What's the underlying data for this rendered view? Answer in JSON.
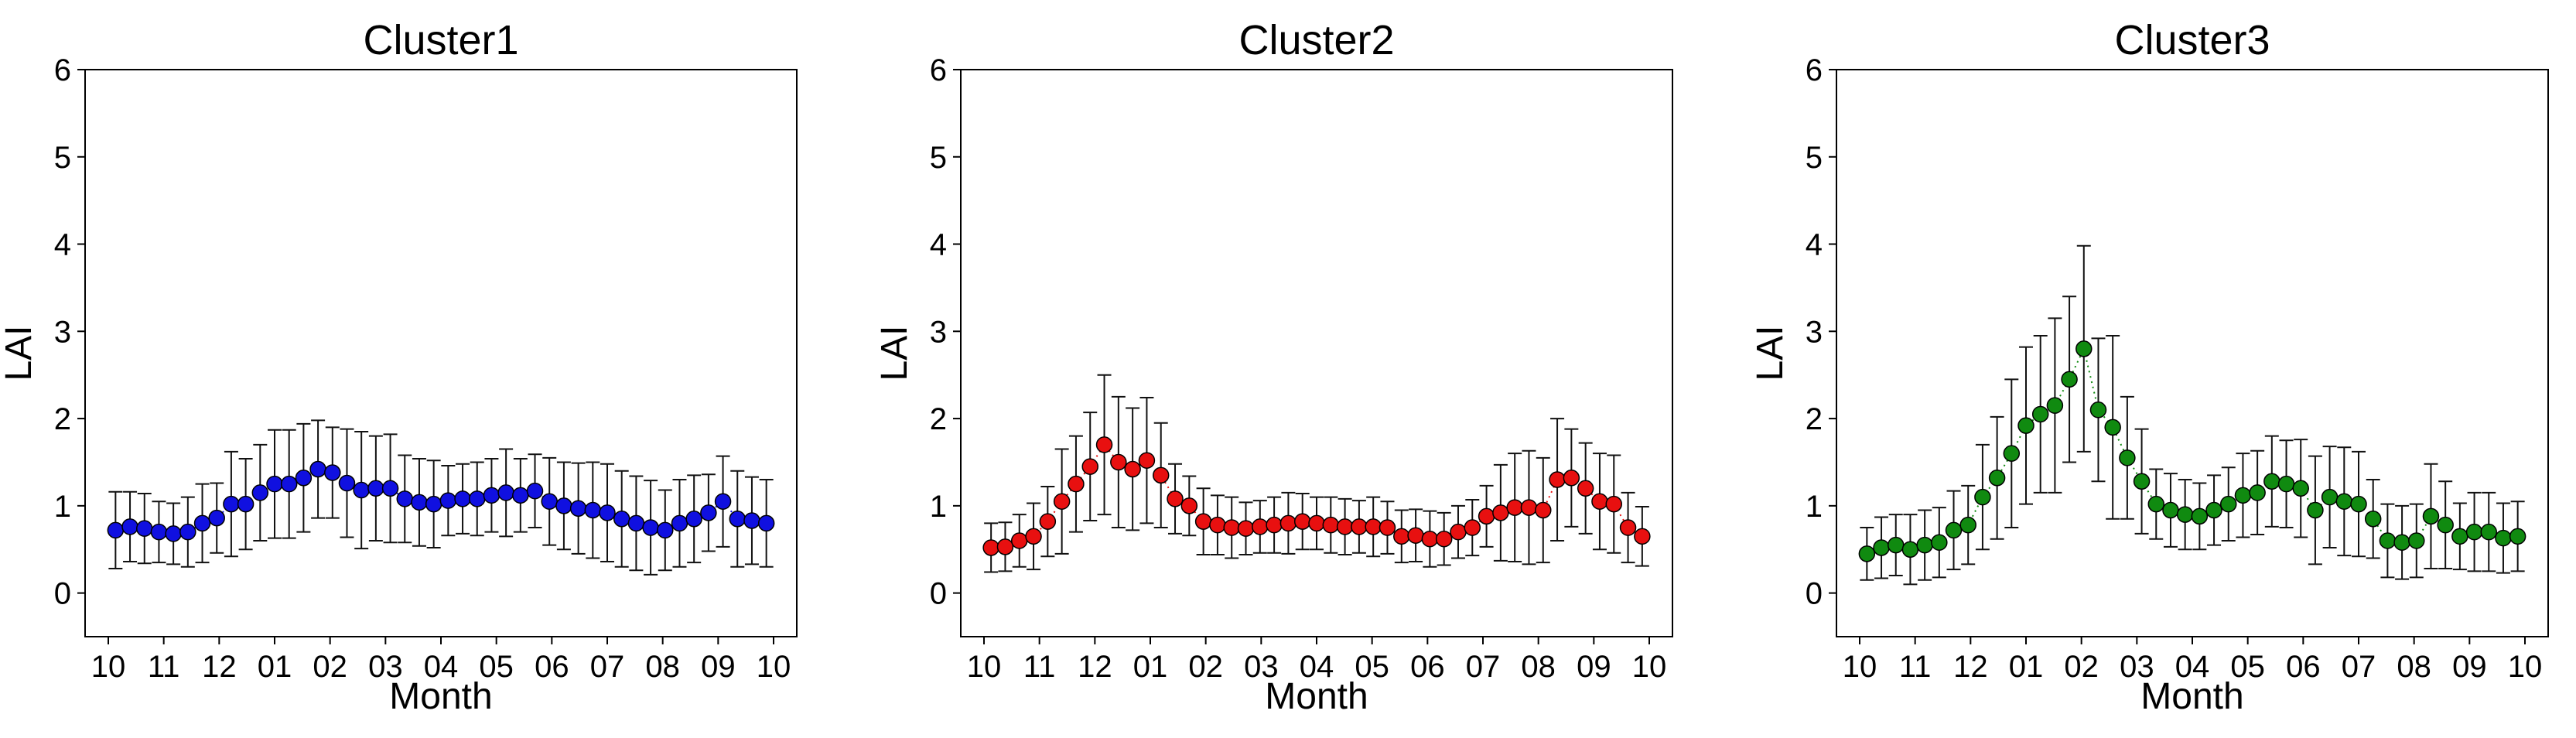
{
  "chart_data": [
    {
      "type": "scatter",
      "title": "Cluster1",
      "xlabel": "Month",
      "ylabel": "LAI",
      "ylim": [
        -0.5,
        6
      ],
      "yticks": [
        "0",
        "1",
        "2",
        "3",
        "4",
        "5",
        "6"
      ],
      "xticks": [
        "10",
        "11",
        "12",
        "01",
        "02",
        "03",
        "04",
        "05",
        "06",
        "07",
        "08",
        "09",
        "10"
      ],
      "grid": false,
      "color": "#1010e0",
      "connector": "dotted",
      "values": [
        0.72,
        0.76,
        0.74,
        0.7,
        0.68,
        0.7,
        0.8,
        0.86,
        1.02,
        1.02,
        1.15,
        1.25,
        1.25,
        1.32,
        1.42,
        1.38,
        1.26,
        1.18,
        1.2,
        1.2,
        1.08,
        1.04,
        1.02,
        1.06,
        1.08,
        1.08,
        1.12,
        1.15,
        1.12,
        1.17,
        1.05,
        1.0,
        0.97,
        0.95,
        0.92,
        0.85,
        0.8,
        0.75,
        0.72,
        0.8,
        0.85,
        0.92,
        1.05,
        0.85,
        0.83,
        0.8
      ],
      "errors": [
        0.44,
        0.4,
        0.4,
        0.35,
        0.35,
        0.4,
        0.45,
        0.4,
        0.6,
        0.52,
        0.55,
        0.62,
        0.62,
        0.62,
        0.56,
        0.52,
        0.62,
        0.67,
        0.6,
        0.62,
        0.5,
        0.5,
        0.5,
        0.4,
        0.4,
        0.42,
        0.42,
        0.5,
        0.42,
        0.42,
        0.5,
        0.5,
        0.52,
        0.55,
        0.56,
        0.55,
        0.54,
        0.54,
        0.46,
        0.5,
        0.5,
        0.44,
        0.52,
        0.55,
        0.5,
        0.5
      ]
    },
    {
      "type": "scatter",
      "title": "Cluster2",
      "xlabel": "Month",
      "ylabel": "LAI",
      "ylim": [
        -0.5,
        6
      ],
      "yticks": [
        "0",
        "1",
        "2",
        "3",
        "4",
        "5",
        "6"
      ],
      "xticks": [
        "10",
        "11",
        "12",
        "01",
        "02",
        "03",
        "04",
        "05",
        "06",
        "07",
        "08",
        "09",
        "10"
      ],
      "grid": false,
      "color": "#e81010",
      "connector": "dotted",
      "values": [
        0.52,
        0.53,
        0.6,
        0.65,
        0.82,
        1.05,
        1.25,
        1.45,
        1.7,
        1.5,
        1.42,
        1.52,
        1.35,
        1.08,
        1.0,
        0.82,
        0.78,
        0.75,
        0.74,
        0.76,
        0.78,
        0.8,
        0.82,
        0.8,
        0.78,
        0.76,
        0.76,
        0.76,
        0.75,
        0.65,
        0.66,
        0.62,
        0.62,
        0.7,
        0.75,
        0.88,
        0.92,
        0.98,
        0.98,
        0.95,
        1.3,
        1.32,
        1.2,
        1.05,
        1.02,
        0.75,
        0.65
      ],
      "errors": [
        0.28,
        0.28,
        0.3,
        0.38,
        0.4,
        0.6,
        0.55,
        0.62,
        0.8,
        0.75,
        0.7,
        0.72,
        0.6,
        0.4,
        0.34,
        0.38,
        0.34,
        0.35,
        0.3,
        0.3,
        0.32,
        0.35,
        0.32,
        0.3,
        0.32,
        0.32,
        0.3,
        0.34,
        0.3,
        0.3,
        0.3,
        0.32,
        0.3,
        0.3,
        0.32,
        0.35,
        0.55,
        0.62,
        0.65,
        0.6,
        0.7,
        0.56,
        0.52,
        0.55,
        0.56,
        0.4,
        0.34
      ]
    },
    {
      "type": "scatter",
      "title": "Cluster3",
      "xlabel": "Month",
      "ylabel": "LAI",
      "ylim": [
        -0.5,
        6
      ],
      "yticks": [
        "0",
        "1",
        "2",
        "3",
        "4",
        "5",
        "6"
      ],
      "xticks": [
        "10",
        "11",
        "12",
        "01",
        "02",
        "03",
        "04",
        "05",
        "06",
        "07",
        "08",
        "09",
        "10"
      ],
      "grid": false,
      "color": "#108a10",
      "connector": "dotted",
      "values": [
        0.45,
        0.52,
        0.55,
        0.5,
        0.55,
        0.58,
        0.72,
        0.78,
        1.1,
        1.32,
        1.6,
        1.92,
        2.05,
        2.15,
        2.45,
        2.8,
        2.1,
        1.9,
        1.55,
        1.28,
        1.02,
        0.95,
        0.9,
        0.88,
        0.95,
        1.02,
        1.12,
        1.15,
        1.28,
        1.25,
        1.2,
        0.95,
        1.1,
        1.05,
        1.02,
        0.85,
        0.6,
        0.58,
        0.6,
        0.88,
        0.78,
        0.65,
        0.7,
        0.7,
        0.63,
        0.65
      ],
      "errors": [
        0.3,
        0.35,
        0.35,
        0.4,
        0.4,
        0.4,
        0.45,
        0.45,
        0.6,
        0.7,
        0.85,
        0.9,
        0.9,
        1.0,
        0.95,
        1.18,
        0.82,
        1.05,
        0.7,
        0.6,
        0.4,
        0.42,
        0.4,
        0.38,
        0.4,
        0.42,
        0.48,
        0.48,
        0.52,
        0.5,
        0.56,
        0.62,
        0.58,
        0.62,
        0.6,
        0.45,
        0.42,
        0.42,
        0.42,
        0.6,
        0.5,
        0.38,
        0.45,
        0.45,
        0.4,
        0.4
      ]
    }
  ]
}
